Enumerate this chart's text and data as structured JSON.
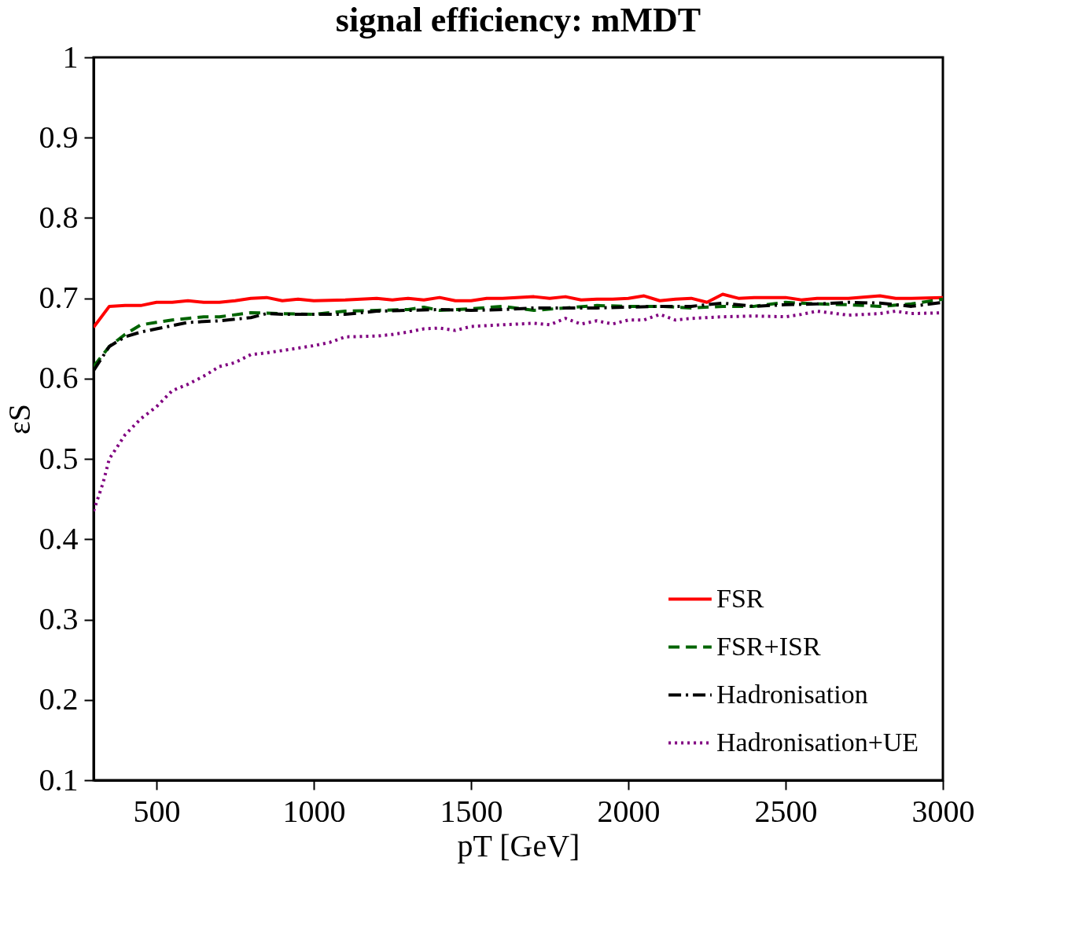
{
  "chart_data": {
    "type": "line",
    "title": "signal efficiency: mMDT",
    "xlabel": "pT [GeV]",
    "ylabel": "εS",
    "xlim": [
      300,
      3000
    ],
    "xticks": [
      500,
      1000,
      1500,
      2000,
      2500,
      3000
    ],
    "ylim": [
      0.1,
      1
    ],
    "yticks": [
      0.1,
      0.2,
      0.3,
      0.4,
      0.5,
      0.6,
      0.7,
      0.8,
      0.9,
      1
    ],
    "grid": false,
    "legend": "bottom right",
    "marker": "none",
    "series": [
      {
        "name": "FSR",
        "color": "#ff0000",
        "line_style": "solid",
        "x": [
          300,
          350,
          400,
          450,
          500,
          550,
          600,
          650,
          700,
          750,
          800,
          850,
          900,
          950,
          1000,
          1100,
          1200,
          1250,
          1300,
          1350,
          1400,
          1450,
          1500,
          1550,
          1600,
          1700,
          1750,
          1800,
          1850,
          1900,
          1950,
          2000,
          2050,
          2100,
          2150,
          2200,
          2250,
          2300,
          2350,
          2400,
          2500,
          2550,
          2600,
          2700,
          2800,
          2850,
          2900,
          3000
        ],
        "values": [
          0.664,
          0.69,
          0.691,
          0.691,
          0.695,
          0.695,
          0.697,
          0.695,
          0.695,
          0.697,
          0.7,
          0.701,
          0.697,
          0.699,
          0.697,
          0.698,
          0.7,
          0.698,
          0.7,
          0.698,
          0.701,
          0.697,
          0.697,
          0.7,
          0.7,
          0.702,
          0.7,
          0.702,
          0.698,
          0.699,
          0.699,
          0.7,
          0.703,
          0.697,
          0.699,
          0.7,
          0.695,
          0.705,
          0.7,
          0.701,
          0.701,
          0.698,
          0.7,
          0.7,
          0.703,
          0.7,
          0.7,
          0.701
        ]
      },
      {
        "name": "FSR+ISR",
        "color": "#006400",
        "line_style": "dashed",
        "x": [
          300,
          350,
          400,
          450,
          500,
          550,
          600,
          650,
          700,
          800,
          900,
          1000,
          1100,
          1200,
          1300,
          1350,
          1400,
          1500,
          1600,
          1700,
          1800,
          1900,
          2000,
          2100,
          2200,
          2300,
          2400,
          2500,
          2600,
          2700,
          2800,
          2900,
          3000
        ],
        "values": [
          0.615,
          0.64,
          0.655,
          0.667,
          0.67,
          0.673,
          0.675,
          0.677,
          0.677,
          0.682,
          0.681,
          0.68,
          0.684,
          0.685,
          0.686,
          0.689,
          0.685,
          0.687,
          0.69,
          0.685,
          0.688,
          0.691,
          0.69,
          0.69,
          0.688,
          0.69,
          0.69,
          0.695,
          0.693,
          0.692,
          0.69,
          0.693,
          0.699
        ]
      },
      {
        "name": "Hadronisation",
        "color": "#000000",
        "line_style": "dashdot",
        "x": [
          300,
          350,
          400,
          450,
          500,
          600,
          700,
          800,
          850,
          900,
          1000,
          1100,
          1200,
          1300,
          1400,
          1500,
          1600,
          1700,
          1800,
          1900,
          2000,
          2100,
          2200,
          2300,
          2400,
          2500,
          2600,
          2700,
          2800,
          2900,
          3000
        ],
        "values": [
          0.61,
          0.64,
          0.652,
          0.658,
          0.662,
          0.67,
          0.672,
          0.676,
          0.681,
          0.68,
          0.68,
          0.68,
          0.684,
          0.685,
          0.686,
          0.685,
          0.686,
          0.688,
          0.688,
          0.688,
          0.689,
          0.69,
          0.69,
          0.694,
          0.69,
          0.692,
          0.693,
          0.695,
          0.694,
          0.69,
          0.695
        ]
      },
      {
        "name": "Hadronisation+UE",
        "color": "#800080",
        "line_style": "dotted",
        "x": [
          300,
          330,
          350,
          400,
          450,
          500,
          550,
          600,
          650,
          700,
          750,
          800,
          850,
          900,
          950,
          1000,
          1050,
          1100,
          1200,
          1250,
          1300,
          1350,
          1400,
          1450,
          1500,
          1600,
          1700,
          1750,
          1800,
          1850,
          1900,
          1950,
          2000,
          2050,
          2100,
          2150,
          2200,
          2300,
          2400,
          2500,
          2550,
          2600,
          2700,
          2800,
          2850,
          2900,
          3000
        ],
        "values": [
          0.435,
          0.47,
          0.5,
          0.53,
          0.55,
          0.565,
          0.585,
          0.593,
          0.603,
          0.615,
          0.62,
          0.63,
          0.632,
          0.635,
          0.638,
          0.641,
          0.645,
          0.652,
          0.653,
          0.655,
          0.658,
          0.662,
          0.663,
          0.66,
          0.665,
          0.667,
          0.669,
          0.667,
          0.675,
          0.668,
          0.672,
          0.668,
          0.673,
          0.673,
          0.68,
          0.673,
          0.675,
          0.677,
          0.678,
          0.677,
          0.68,
          0.684,
          0.679,
          0.681,
          0.684,
          0.681,
          0.682
        ]
      }
    ]
  }
}
